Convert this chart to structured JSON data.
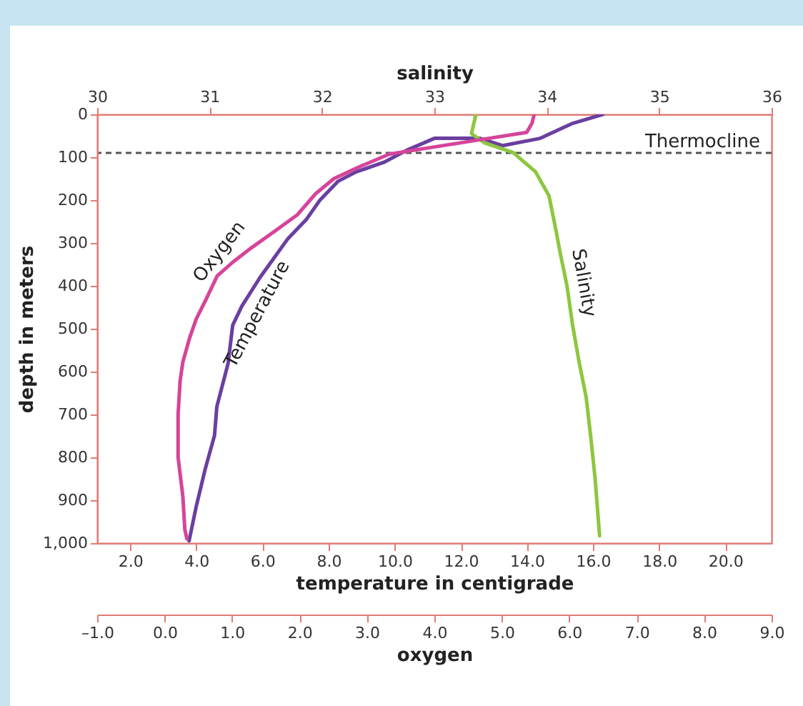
{
  "chart_data": [
    {
      "type": "line",
      "xlabel": "temperature in centigrade",
      "x2label": "salinity",
      "ylabel": "depth in meters",
      "xlim": [
        1.0,
        21.4
      ],
      "xticks": [
        {
          "value": 2,
          "label": "2.0"
        },
        {
          "value": 4,
          "label": "4.0"
        },
        {
          "value": 6,
          "label": "6.0"
        },
        {
          "value": 8,
          "label": "8.0"
        },
        {
          "value": 10,
          "label": "10.0"
        },
        {
          "value": 12,
          "label": "12.0"
        },
        {
          "value": 14,
          "label": "14.0"
        },
        {
          "value": 16,
          "label": "16.0"
        },
        {
          "value": 18,
          "label": "18.0"
        },
        {
          "value": 20,
          "label": "20.0"
        }
      ],
      "x2lim": [
        30,
        36
      ],
      "x2ticks": [
        30,
        31,
        32,
        33,
        34,
        35,
        36
      ],
      "ylim": [
        1000,
        0
      ],
      "yticks": [
        0,
        100,
        200,
        300,
        400,
        500,
        600,
        700,
        800,
        900,
        {
          "value": 1000,
          "label": "1,000"
        }
      ],
      "series": [
        {
          "name": "Temperature",
          "color": "#6a3fa0",
          "x": [
            16.3,
            15.35,
            14.4,
            13.27,
            12.58,
            11.2,
            10.36,
            9.67,
            8.84,
            8.29,
            7.73,
            7.32,
            6.76,
            6.35,
            5.93,
            5.38,
            5.1,
            4.96,
            4.62,
            4.55,
            4.27,
            3.99,
            3.78
          ],
          "values": [
            0,
            22,
            56,
            73,
            56,
            56,
            84,
            112,
            134,
            156,
            201,
            246,
            291,
            335,
            380,
            447,
            492,
            581,
            682,
            749,
            827,
            917,
            995
          ]
        },
        {
          "name": "Salinity",
          "color": "#8dc63f",
          "axis": "x2",
          "x": [
            33.37,
            33.33,
            33.45,
            33.7,
            33.9,
            34.02,
            34.08,
            34.12,
            34.18,
            34.23,
            34.29,
            34.35,
            34.39,
            34.43,
            34.47
          ],
          "values": [
            0,
            45,
            67,
            89,
            134,
            190,
            268,
            324,
            400,
            492,
            581,
            659,
            749,
            849,
            983
          ]
        }
      ],
      "ref_lines": [
        {
          "axis": "y",
          "value": 90,
          "label": "Thermocline",
          "color": "#555555",
          "line_style": "dashed"
        }
      ]
    },
    {
      "type": "line",
      "xlabel": "oxygen",
      "tick_labels": "x",
      "xlim": [
        -1,
        9
      ],
      "xticks": [
        {
          "value": -1,
          "label": "–1.0"
        },
        {
          "value": 0,
          "label": "0.0"
        },
        {
          "value": 1,
          "label": "1.0"
        },
        {
          "value": 2,
          "label": "2.0"
        },
        {
          "value": 3,
          "label": "3.0"
        },
        {
          "value": 4,
          "label": "4.0"
        },
        {
          "value": 5,
          "label": "5.0"
        },
        {
          "value": 6,
          "label": "6.0"
        },
        {
          "value": 7,
          "label": "7.0"
        },
        {
          "value": 8,
          "label": "8.0"
        },
        {
          "value": 9,
          "label": "9.0"
        }
      ],
      "ylim": [
        1000,
        0
      ],
      "yticks": [
        0,
        100,
        200,
        300,
        400,
        500,
        600,
        700,
        800,
        900,
        1000
      ],
      "series": [
        {
          "name": "Oxygen",
          "color": "#d6449a",
          "x": [
            5.48,
            5.45,
            5.37,
            4.69,
            4.0,
            3.33,
            2.85,
            2.51,
            2.24,
            1.97,
            1.63,
            1.29,
            1.01,
            0.78,
            0.61,
            0.47,
            0.37,
            0.27,
            0.23,
            0.2,
            0.2,
            0.27,
            0.3,
            0.33
          ],
          "values": [
            0,
            20,
            42,
            59,
            76,
            93,
            125,
            150,
            185,
            234,
            273,
            311,
            345,
            377,
            433,
            477,
            522,
            578,
            622,
            700,
            800,
            890,
            968,
            990
          ]
        }
      ]
    }
  ]
}
